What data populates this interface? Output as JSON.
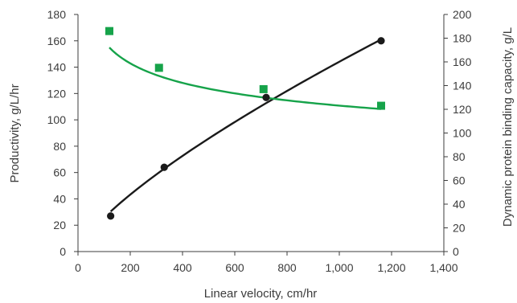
{
  "chart_data": {
    "type": "scatter",
    "title": "",
    "xlabel": "Linear velocity, cm/hr",
    "ylabel_left": "Productivity, g/L/hr",
    "ylabel_right": "Dynamic protein binding capacity, g/L",
    "xlim": [
      0,
      1400
    ],
    "ylim_left": [
      0,
      180
    ],
    "ylim_right": [
      0,
      200
    ],
    "x_ticks": [
      0,
      200,
      400,
      600,
      800,
      1000,
      1200,
      1400
    ],
    "x_tick_labels": [
      "0",
      "200",
      "400",
      "600",
      "800",
      "1,000",
      "1,200",
      "1,400"
    ],
    "y_ticks_left": [
      0,
      20,
      40,
      60,
      80,
      100,
      120,
      140,
      160,
      180
    ],
    "y_tick_labels_left": [
      "0",
      "20",
      "40",
      "60",
      "80",
      "100",
      "120",
      "140",
      "160",
      "180"
    ],
    "y_ticks_right": [
      0,
      20,
      40,
      60,
      80,
      100,
      120,
      140,
      160,
      180,
      200
    ],
    "y_tick_labels_right": [
      "0",
      "20",
      "40",
      "60",
      "80",
      "100",
      "120",
      "140",
      "160",
      "180",
      "200"
    ],
    "grid": false,
    "series": [
      {
        "axis": "left",
        "marker": "circle",
        "color": "#1a1a1a",
        "points": [
          {
            "x": 125,
            "y": 27
          },
          {
            "x": 330,
            "y": 64
          },
          {
            "x": 720,
            "y": 117
          },
          {
            "x": 1160,
            "y": 160
          }
        ],
        "fit": {
          "model": "power",
          "a": 0.8216,
          "b": 0.748
        }
      },
      {
        "axis": "right",
        "marker": "square",
        "color": "#16a34a",
        "points": [
          {
            "x": 120,
            "y": 186
          },
          {
            "x": 310,
            "y": 155
          },
          {
            "x": 710,
            "y": 137
          },
          {
            "x": 1160,
            "y": 123
          }
        ],
        "fit": {
          "model": "power",
          "a": 366.7,
          "b": -0.158
        }
      }
    ]
  }
}
